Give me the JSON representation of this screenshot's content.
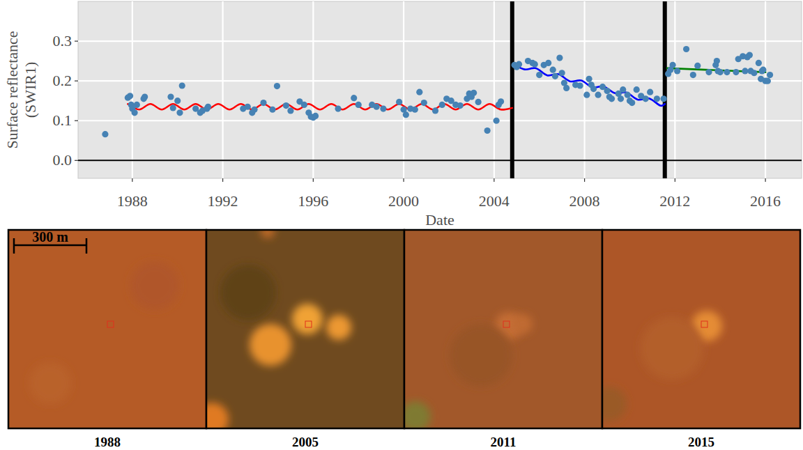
{
  "chart_data": {
    "type": "scatter",
    "x_label": "Date",
    "y_label": "Surface reflectance (SWIR1)",
    "xlim": [
      1985.6,
      2017.6
    ],
    "ylim": [
      -0.045,
      0.4
    ],
    "xticks": [
      1988,
      1992,
      1996,
      2000,
      2004,
      2008,
      2012,
      2016
    ],
    "yticks": [
      {
        "value": 0,
        "label": "0.0"
      },
      0.1,
      0.2,
      0.3
    ],
    "grid": true,
    "reference_line": 0,
    "breakpoints": [
      2004.8,
      2011.55
    ],
    "series": [
      {
        "type": "scatter",
        "marker": "circle",
        "color": "#4682b4",
        "x": [
          1986.8,
          1987.8,
          1987.9,
          1987.95,
          1988.0,
          1988.1,
          1988.2,
          1988.5,
          1988.55,
          1989.7,
          1989.8,
          1990.0,
          1990.1,
          1990.2,
          1990.8,
          1991.0,
          1991.1,
          1991.3,
          1991.35,
          1992.9,
          1993.1,
          1993.3,
          1993.4,
          1993.8,
          1994.2,
          1994.4,
          1994.8,
          1995.0,
          1995.4,
          1995.6,
          1995.8,
          1995.9,
          1996.0,
          1996.1,
          1997.1,
          1997.8,
          1998.0,
          1998.6,
          1998.8,
          1999.1,
          1999.8,
          2000.0,
          2000.1,
          2000.3,
          2000.5,
          2000.7,
          2000.9,
          2001.4,
          2001.7,
          2001.9,
          2002.1,
          2002.3,
          2002.5,
          2002.8,
          2002.9,
          2003.0,
          2003.1,
          2003.3,
          2003.7,
          2004.1,
          2004.2,
          2004.3,
          2004.9,
          2005.0,
          2005.1,
          2005.5,
          2005.7,
          2005.8,
          2006.0,
          2006.2,
          2006.4,
          2006.6,
          2006.7,
          2006.9,
          2007.0,
          2007.1,
          2007.2,
          2007.6,
          2007.8,
          2008.1,
          2008.2,
          2008.3,
          2008.4,
          2008.6,
          2008.8,
          2009.0,
          2009.1,
          2009.2,
          2009.5,
          2009.6,
          2009.7,
          2009.9,
          2010.0,
          2010.1,
          2010.3,
          2010.5,
          2010.7,
          2010.9,
          2011.2,
          2011.5,
          2011.7,
          2011.8,
          2011.9,
          2012.1,
          2012.5,
          2012.8,
          2013.0,
          2013.5,
          2013.8,
          2013.85,
          2013.9,
          2014.0,
          2014.3,
          2014.7,
          2014.8,
          2015.0,
          2015.1,
          2015.2,
          2015.3,
          2015.35,
          2015.5,
          2015.7,
          2015.8,
          2015.85,
          2015.9,
          2016.0,
          2016.1,
          2016.2
        ],
        "values": [
          0.066,
          0.158,
          0.162,
          0.14,
          0.13,
          0.12,
          0.14,
          0.155,
          0.16,
          0.16,
          0.132,
          0.15,
          0.12,
          0.188,
          0.13,
          0.12,
          0.125,
          0.13,
          0.135,
          0.13,
          0.135,
          0.12,
          0.128,
          0.145,
          0.128,
          0.187,
          0.138,
          0.125,
          0.148,
          0.14,
          0.12,
          0.11,
          0.108,
          0.112,
          0.13,
          0.157,
          0.14,
          0.14,
          0.135,
          0.13,
          0.147,
          0.128,
          0.115,
          0.13,
          0.128,
          0.172,
          0.145,
          0.125,
          0.14,
          0.155,
          0.15,
          0.14,
          0.138,
          0.155,
          0.168,
          0.16,
          0.17,
          0.147,
          0.075,
          0.1,
          0.14,
          0.148,
          0.24,
          0.235,
          0.242,
          0.25,
          0.245,
          0.242,
          0.215,
          0.24,
          0.245,
          0.228,
          0.212,
          0.258,
          0.22,
          0.195,
          0.182,
          0.19,
          0.188,
          0.165,
          0.205,
          0.19,
          0.18,
          0.165,
          0.185,
          0.175,
          0.16,
          0.155,
          0.168,
          0.155,
          0.178,
          0.165,
          0.15,
          0.145,
          0.178,
          0.162,
          0.155,
          0.172,
          0.155,
          0.155,
          0.218,
          0.228,
          0.24,
          0.225,
          0.28,
          0.215,
          0.238,
          0.222,
          0.24,
          0.25,
          0.225,
          0.222,
          0.222,
          0.222,
          0.255,
          0.262,
          0.225,
          0.26,
          0.265,
          0.225,
          0.22,
          0.245,
          0.205,
          0.225,
          0.228,
          0.2,
          0.2,
          0.215
        ]
      },
      {
        "type": "line",
        "line_style": "solid",
        "color": "#ff0000",
        "x": [
          1987.8,
          1988.3,
          1988.8,
          1989.3,
          1989.8,
          1990.3,
          1990.8,
          1991.3,
          1991.8,
          1992.3,
          1992.8,
          1993.3,
          1993.8,
          1994.3,
          1994.8,
          1995.3,
          1995.8,
          1996.3,
          1996.8,
          1997.3,
          1997.8,
          1998.3,
          1998.8,
          1999.3,
          1999.8,
          2000.3,
          2000.8,
          2001.3,
          2001.8,
          2002.3,
          2002.8,
          2003.3,
          2003.8,
          2004.3,
          2004.8
        ],
        "values": [
          0.142,
          0.128,
          0.142,
          0.128,
          0.142,
          0.128,
          0.142,
          0.128,
          0.142,
          0.128,
          0.142,
          0.128,
          0.142,
          0.128,
          0.142,
          0.128,
          0.142,
          0.128,
          0.142,
          0.128,
          0.142,
          0.128,
          0.142,
          0.128,
          0.142,
          0.128,
          0.142,
          0.128,
          0.142,
          0.128,
          0.142,
          0.128,
          0.142,
          0.128,
          0.132
        ]
      },
      {
        "type": "line",
        "line_style": "solid",
        "color": "#0000ff",
        "x": [
          2004.85,
          2005.35,
          2005.85,
          2006.35,
          2006.85,
          2007.35,
          2007.85,
          2008.35,
          2008.85,
          2009.35,
          2009.85,
          2010.35,
          2010.85,
          2011.35,
          2011.55
        ],
        "values": [
          0.242,
          0.229,
          0.232,
          0.214,
          0.217,
          0.199,
          0.201,
          0.184,
          0.186,
          0.169,
          0.171,
          0.153,
          0.156,
          0.138,
          0.142
        ]
      },
      {
        "type": "line",
        "line_style": "solid",
        "color": "#008000",
        "x": [
          2011.65,
          2016.0
        ],
        "values": [
          0.232,
          0.222
        ]
      }
    ]
  },
  "image_panels": {
    "labels": [
      "1988",
      "2005",
      "2011",
      "2015"
    ],
    "scale_bar": "300 m"
  }
}
